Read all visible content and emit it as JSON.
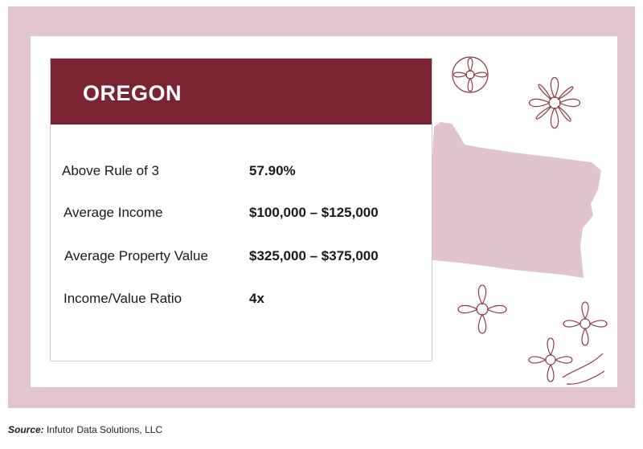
{
  "card": {
    "title": "OREGON",
    "rows": [
      {
        "label": "Above Rule of 3",
        "value": "57.90%"
      },
      {
        "label": "Average Income",
        "value": "$100,000 – $125,000"
      },
      {
        "label": "Average Property Value",
        "value": "$325,000 – $375,000"
      },
      {
        "label": "Income/Value Ratio",
        "value": "4x"
      }
    ]
  },
  "source": {
    "prefix": "Source:",
    "text": " Infutor Data Solutions, LLC"
  },
  "colors": {
    "frame": "#e3c6cd",
    "header": "#7a2431",
    "state_shape": "#dfc4cb",
    "flower_line": "#8a3a48"
  },
  "icons": [
    "oregon-state-shape",
    "flower-icon"
  ]
}
